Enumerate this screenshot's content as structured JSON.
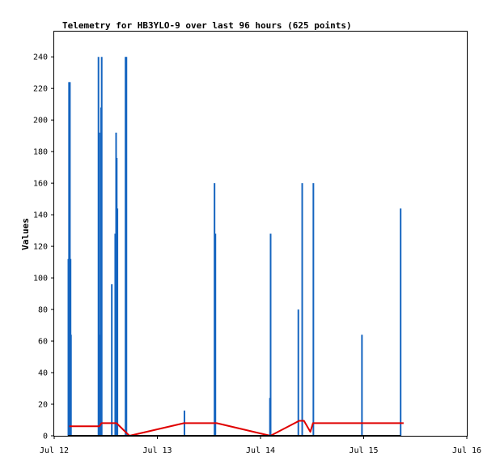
{
  "chart_data": {
    "type": "line",
    "title": "Telemetry for HB3YLO-9 over last 96 hours (625 points)",
    "xlabel": "",
    "ylabel": "Values",
    "x_ticks": [
      "Jul 12",
      "Jul 13",
      "Jul 14",
      "Jul 15",
      "Jul 16"
    ],
    "x_range_hours": [
      0,
      96
    ],
    "y_ticks": [
      0,
      20,
      40,
      60,
      80,
      100,
      120,
      140,
      160,
      180,
      200,
      220,
      240
    ],
    "ylim": [
      0,
      256
    ],
    "grid": false,
    "legend": "none",
    "series": [
      {
        "color": "#1565c0",
        "style": "spikes",
        "points": [
          [
            3.3,
            112
          ],
          [
            3.45,
            224
          ],
          [
            3.65,
            224
          ],
          [
            3.8,
            112
          ],
          [
            3.9,
            64
          ],
          [
            10.3,
            240
          ],
          [
            10.5,
            192
          ],
          [
            10.7,
            64
          ],
          [
            10.9,
            208
          ],
          [
            11.05,
            240
          ],
          [
            13.4,
            96
          ],
          [
            14.2,
            128
          ],
          [
            14.4,
            192
          ],
          [
            14.55,
            176
          ],
          [
            14.7,
            144
          ],
          [
            16.6,
            240
          ],
          [
            16.8,
            240
          ],
          [
            30.3,
            16
          ],
          [
            37.3,
            160
          ],
          [
            37.5,
            128
          ],
          [
            50.2,
            24
          ],
          [
            50.35,
            128
          ],
          [
            56.8,
            80
          ],
          [
            57.7,
            160
          ],
          [
            60.3,
            160
          ],
          [
            71.6,
            64
          ],
          [
            80.6,
            144
          ]
        ]
      },
      {
        "color": "#e00000",
        "style": "line",
        "points": [
          [
            3.5,
            6
          ],
          [
            10.5,
            6
          ],
          [
            11.0,
            8
          ],
          [
            13.5,
            8
          ],
          [
            14.5,
            8
          ],
          [
            17.5,
            0
          ],
          [
            30.2,
            8
          ],
          [
            37.3,
            8
          ],
          [
            37.8,
            8
          ],
          [
            50.3,
            0
          ],
          [
            57.0,
            9.5
          ],
          [
            58.1,
            9.5
          ],
          [
            59.6,
            2.5
          ],
          [
            60.2,
            8
          ],
          [
            71.6,
            8
          ],
          [
            80.5,
            8
          ],
          [
            81.3,
            8
          ]
        ]
      },
      {
        "color": "#000000",
        "style": "line",
        "points": [
          [
            3.2,
            0
          ],
          [
            80.6,
            0
          ]
        ]
      }
    ]
  }
}
